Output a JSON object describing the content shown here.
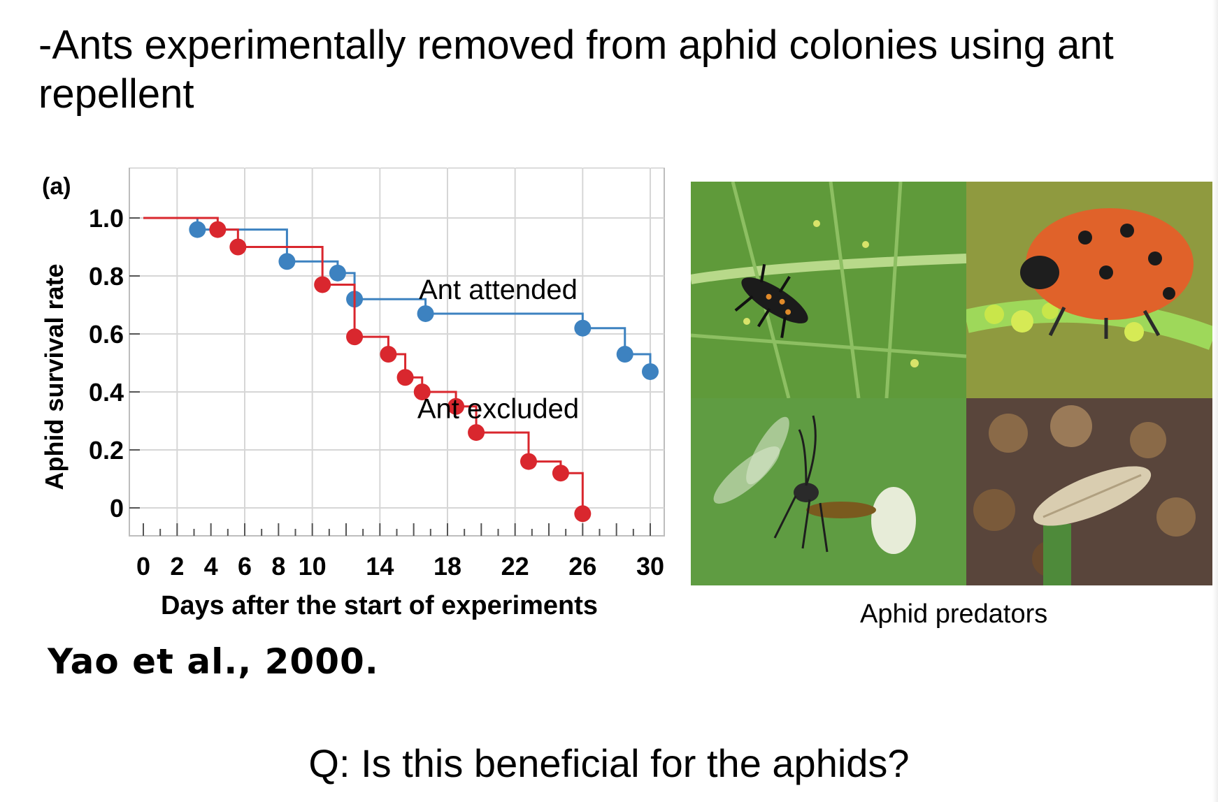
{
  "slide": {
    "heading": "-Ants experimentally removed from aphid colonies using ant repellent",
    "panel_label": "(a)",
    "citation": "Yao et al., 2000.",
    "photo_caption": "Aphid predators",
    "question": "Q: Is this beneficial for the aphids?",
    "photos": [
      {
        "icon": "ladybird-larva-icon"
      },
      {
        "icon": "ladybird-beetle-icon"
      },
      {
        "icon": "parasitoid-wasp-icon"
      },
      {
        "icon": "hoverfly-larva-icon"
      }
    ]
  },
  "chart_data": {
    "type": "line",
    "step": true,
    "xlabel": "Days after the start of experiments",
    "ylabel": "Aphid survival rate",
    "xlim": [
      0,
      30
    ],
    "ylim": [
      0,
      1.0
    ],
    "x_ticks": [
      0,
      2,
      4,
      6,
      8,
      10,
      14,
      18,
      22,
      26,
      30
    ],
    "y_ticks": [
      0,
      0.2,
      0.4,
      0.6,
      0.8,
      1.0
    ],
    "y_tick_labels": [
      "0",
      "0.2",
      "0.4",
      "0.6",
      "0.8",
      "1.0"
    ],
    "grid": true,
    "series": [
      {
        "name": "Ant attended",
        "color": "#3d82c0",
        "points": [
          {
            "x": 3.2,
            "y": 0.96
          },
          {
            "x": 8.5,
            "y": 0.85
          },
          {
            "x": 11.5,
            "y": 0.81
          },
          {
            "x": 12.5,
            "y": 0.72
          },
          {
            "x": 16.7,
            "y": 0.67
          },
          {
            "x": 26.0,
            "y": 0.62
          },
          {
            "x": 28.5,
            "y": 0.53
          },
          {
            "x": 30.0,
            "y": 0.47
          }
        ]
      },
      {
        "name": "Ant excluded",
        "color": "#d9272e",
        "points": [
          {
            "x": 4.4,
            "y": 0.96
          },
          {
            "x": 5.6,
            "y": 0.9
          },
          {
            "x": 10.6,
            "y": 0.77
          },
          {
            "x": 12.5,
            "y": 0.59
          },
          {
            "x": 14.5,
            "y": 0.53
          },
          {
            "x": 15.5,
            "y": 0.45
          },
          {
            "x": 16.5,
            "y": 0.4
          },
          {
            "x": 18.5,
            "y": 0.35
          },
          {
            "x": 19.7,
            "y": 0.26
          },
          {
            "x": 22.8,
            "y": 0.16
          },
          {
            "x": 24.7,
            "y": 0.12
          },
          {
            "x": 26.0,
            "y": -0.02
          }
        ]
      }
    ]
  }
}
